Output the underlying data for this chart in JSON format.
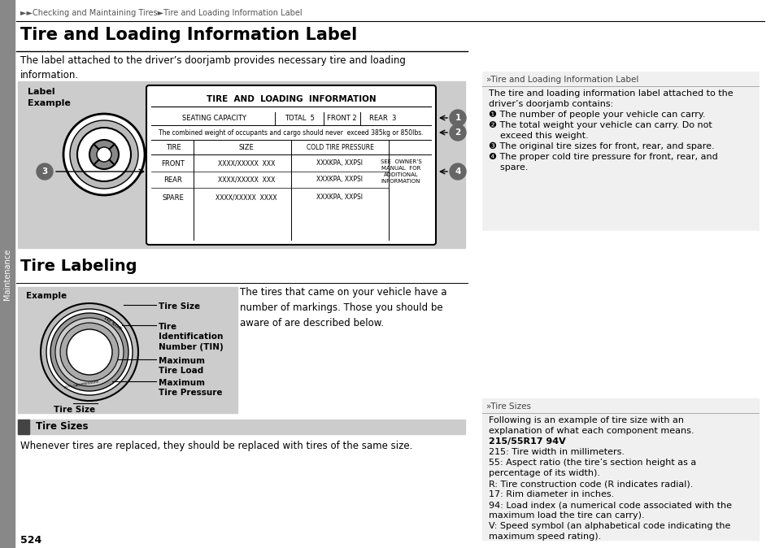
{
  "breadcrumb": "►►Checking and Maintaining Tires►Tire and Loading Information Label",
  "title_main": "Tire and Loading Information Label",
  "intro_text": "The label attached to the driver’s doorjamb provides necessary tire and loading\ninformation.",
  "label_example_text": "Label\nExample",
  "tire_label_title": "TIRE  AND  LOADING  INFORMATION",
  "seating_capacity": "SEATING CAPACITY",
  "total_5": "TOTAL  5",
  "front_2": "FRONT 2",
  "rear_3": "REAR  3",
  "combined_weight": "The combined weight of occupants and cargo should never  exceed 385kg or 850lbs.",
  "tire_col": "TIRE",
  "size_col": "SIZE",
  "cold_pressure_col": "COLD TIRE PRESSURE",
  "front_row": "FRONT",
  "rear_row": "REAR",
  "spare_row": "SPARE",
  "size_front": "XXXX/XXXXX  XXX",
  "size_spare": "XXXX/XXXXX  XXXX",
  "pressure_vals": "XXXKPA, XXPSI",
  "see_owners": "SEE  OWNER’S\nMANUAL  FOR\nADDITIONAL\nINFORMATION",
  "title_labeling": "Tire Labeling",
  "example_label": "Example",
  "tire_size_label": "Tire Size",
  "tire_id_label": "Tire\nIdentification\nNumber (TIN)",
  "max_load_label": "Maximum\nTire Load",
  "max_pressure_label": "Maximum\nTire Pressure",
  "tire_size_bottom": "Tire Size",
  "labeling_body": "The tires that came on your vehicle have a\nnumber of markings. Those you should be\naware of are described below.",
  "title_sizes": "Tire Sizes",
  "sizes_body": "Whenever tires are replaced, they should be replaced with tires of the same size.",
  "page_number": "524",
  "right_box_header": "»Tire and Loading Information Label",
  "right_box_body_lines": [
    "The tire and loading information label attached to the",
    "driver’s doorjamb contains:",
    "❶ The number of people your vehicle can carry.",
    "❷ The total weight your vehicle can carry. Do not",
    "    exceed this weight.",
    "❸ The original tire sizes for front, rear, and spare.",
    "❹ The proper cold tire pressure for front, rear, and",
    "    spare."
  ],
  "right_sizes_header": "»Tire Sizes",
  "right_sizes_body_lines": [
    [
      "Following is an example of tire size with an",
      false
    ],
    [
      "explanation of what each component means.",
      false
    ],
    [
      "215/55R17 94V",
      true
    ],
    [
      "215: Tire width in millimeters.",
      false
    ],
    [
      "55: Aspect ratio (the tire’s section height as a",
      false
    ],
    [
      "percentage of its width).",
      false
    ],
    [
      "R: Tire construction code (R indicates radial).",
      false
    ],
    [
      "17: Rim diameter in inches.",
      false
    ],
    [
      "94: Load index (a numerical code associated with the",
      false
    ],
    [
      "maximum load the tire can carry).",
      false
    ],
    [
      "V: Speed symbol (an alphabetical code indicating the",
      false
    ],
    [
      "maximum speed rating).",
      false
    ]
  ],
  "bg_color": "#ffffff",
  "gray_bg": "#cccccc",
  "right_bg": "#f0f0f0",
  "sidebar_color": "#888888",
  "circle_color": "#666666"
}
